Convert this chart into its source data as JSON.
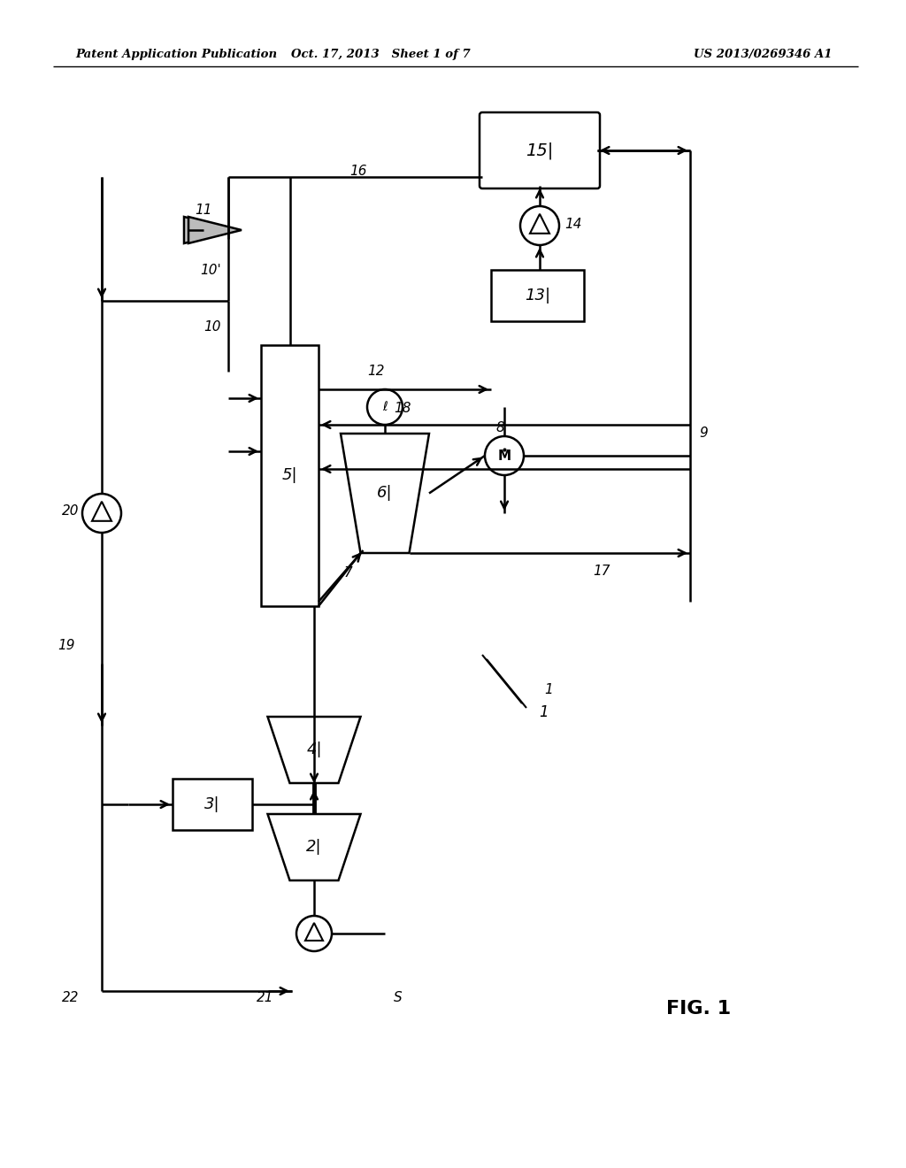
{
  "bg_color": "#ffffff",
  "line_color": "#000000",
  "header_left": "Patent Application Publication",
  "header_center": "Oct. 17, 2013   Sheet 1 of 7",
  "header_right": "US 2013/0269346 A1",
  "fig_label": "FIG. 1"
}
